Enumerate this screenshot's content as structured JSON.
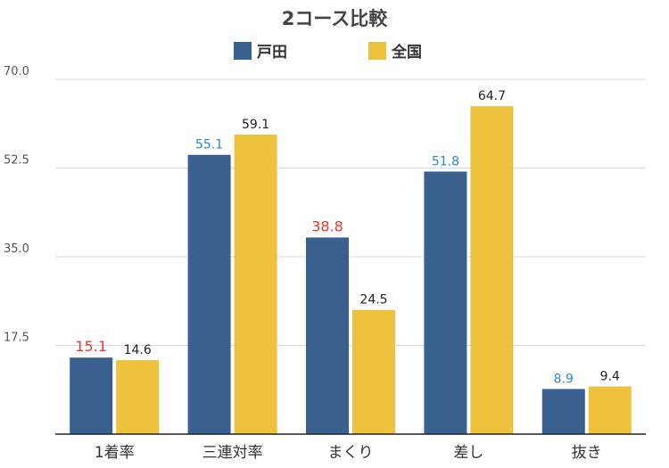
{
  "chart_data": {
    "type": "bar",
    "title": "2コース比較",
    "categories": [
      "1着率",
      "三連対率",
      "まくり",
      "差し",
      "抜き"
    ],
    "series": [
      {
        "name": "戸田",
        "color": "#3a6090",
        "values": [
          15.1,
          55.1,
          38.8,
          51.8,
          8.9
        ],
        "label_colors": [
          "#e8392b",
          "#2f86d1",
          "#e8392b",
          "#2f86d1",
          "#2f86d1"
        ]
      },
      {
        "name": "全国",
        "color": "#efc23e",
        "values": [
          14.6,
          59.1,
          24.5,
          64.7,
          9.4
        ],
        "label_colors": [
          "#222222",
          "#222222",
          "#222222",
          "#222222",
          "#222222"
        ]
      }
    ],
    "yticks": [
      17.5,
      35.0,
      52.5,
      70.0
    ],
    "ytick_labels": [
      "17.5",
      "35.0",
      "52.5",
      "70.0"
    ],
    "ylim": [
      0,
      70
    ],
    "grid": true,
    "legend_position": "top-center",
    "xlabel": "",
    "ylabel": ""
  }
}
